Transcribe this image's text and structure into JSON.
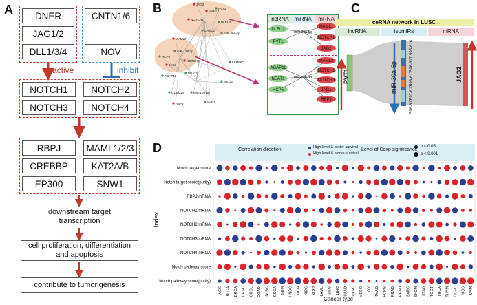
{
  "panelA": {
    "label": "A",
    "ligands_group": [
      "DNER",
      "JAG1/2",
      "DLL1/3/4"
    ],
    "inhibitor_group": [
      "CNTN1/6",
      "NOV"
    ],
    "active_label": "active",
    "inhibit_label": "inhibit",
    "receptors": [
      "NOTCH1",
      "NOTCH2",
      "NOTCH3",
      "NOTCH4"
    ],
    "nuclear_factors": [
      "RBPJ",
      "MAML1/2/3",
      "CREBBP",
      "KAT2A/B",
      "EP300",
      "SNW1"
    ],
    "steps": [
      "downstream target transcription",
      "cell proliferation, differentiation and apoptosis",
      "contribute to tumorigenesis"
    ]
  },
  "panelB": {
    "label": "B",
    "headers": [
      "lncRNA",
      "miRNA",
      "mRNA"
    ],
    "top": {
      "lncrnas": [
        "DLEU2",
        "PVT1"
      ],
      "mirna": "miR-30a-5p",
      "mrnas": [
        "MAML1",
        "NOTCH1",
        "JAG2"
      ]
    },
    "bottom": {
      "lncrnas": [
        "AGAP11",
        "NEAT1",
        "HCP5"
      ],
      "mirna": "miR-128-3p",
      "mrnas": [
        "MAML2",
        "NOTCH1",
        "NOTCH3",
        "JAG1",
        "RBPJ"
      ]
    },
    "network_labels": [
      "JAG2",
      "MAML1",
      "PVT1",
      "NOTCH1",
      "DLEU2",
      "CASC2",
      "miR-30a-5p",
      "MAML2",
      "HCP5",
      "miR-128-3p",
      "NOTCH3",
      "JAG1",
      "NEAT1",
      "AGAP11",
      "MEG3",
      "FAM66C",
      "C1orf229",
      "miR-155-5p",
      "miR-1",
      "RBPJ"
    ]
  },
  "panelC": {
    "label": "C",
    "title": "ceRNA network in LUSC",
    "headers": [
      "lncRNA",
      "isomiRs",
      "mRNA"
    ],
    "left_node": "PVT1",
    "mid_node": "miR-30a-5p",
    "right_node": "JAG2",
    "isomirs": [
      "595-616",
      "596-617",
      "596-617",
      "597-617",
      "598-617"
    ]
  },
  "panelD": {
    "label": "D",
    "legend": {
      "direction_title": "Correlation direction",
      "blue_label": "High level & better survival",
      "red_label": "High level & worse survival",
      "sig_title": "Level of Coxp significance",
      "sig1": "p < 0.05",
      "sig2": "p < 0.001"
    },
    "ylabel": "Index",
    "xlabel": "Cancer type",
    "rows": [
      "Notch target score",
      "Notch target score(purity)",
      "RBPJ mRNA",
      "NOTCH1 mRNA",
      "NOTCH2 mRNA",
      "NOTCH3 mRNA",
      "NOTCH4 mRNA",
      "Notch pathway score",
      "Notch pathway score(purity)"
    ],
    "cols": [
      "ACC",
      "BLCA",
      "BRCA",
      "CESC",
      "CHOL",
      "COAD",
      "DLBC",
      "ESCA",
      "GBM",
      "HNSC",
      "KICH",
      "KIRC",
      "KIRP",
      "LAML",
      "LGG",
      "LIHC",
      "LUAD",
      "LUSC",
      "MESO",
      "OV",
      "PAAD",
      "PCPG",
      "PRAD",
      "READ",
      "SARC",
      "SKCM",
      "STAD",
      "TGCT",
      "THCA",
      "THYM",
      "UCEC",
      "UCS",
      "UVM"
    ],
    "colors": {
      "red": "#d7262b",
      "blue": "#2b3f8f"
    }
  }
}
